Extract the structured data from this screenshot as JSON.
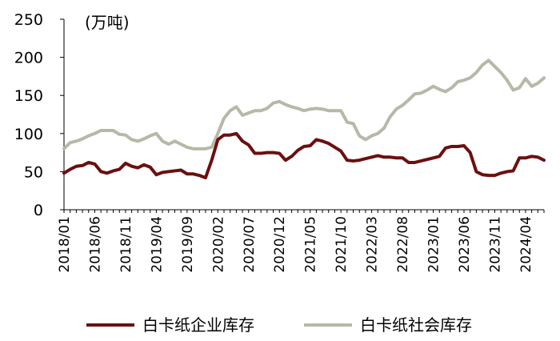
{
  "chart_data": {
    "type": "line",
    "title": "",
    "unit_label": "(万吨)",
    "xlabel": "",
    "ylabel": "",
    "ylim": [
      0,
      250
    ],
    "yticks": [
      0,
      50,
      100,
      150,
      200,
      250
    ],
    "x_start": "2018/01",
    "x_tick_labels": [
      "2018/01",
      "2018/06",
      "2018/11",
      "2019/04",
      "2019/09",
      "2020/02",
      "2020/07",
      "2020/12",
      "2021/05",
      "2021/10",
      "2022/03",
      "2022/08",
      "2023/01",
      "2023/06",
      "2023/11",
      "2024/04"
    ],
    "grid": false,
    "legend_position": "bottom",
    "series": [
      {
        "name": "白卡纸企业库存",
        "color": "#6b0f0f",
        "values": [
          48,
          53,
          57,
          58,
          62,
          60,
          50,
          48,
          51,
          53,
          61,
          57,
          55,
          59,
          56,
          46,
          49,
          50,
          51,
          52,
          47,
          47,
          45,
          42,
          65,
          92,
          98,
          98,
          100,
          90,
          85,
          74,
          74,
          75,
          75,
          74,
          65,
          70,
          78,
          83,
          84,
          92,
          90,
          87,
          82,
          77,
          65,
          64,
          65,
          67,
          69,
          71,
          69,
          69,
          68,
          68,
          62,
          62,
          64,
          66,
          68,
          70,
          81,
          83,
          83,
          84,
          75,
          50,
          46,
          45,
          45,
          48,
          50,
          51,
          68,
          68,
          70,
          69,
          65
        ]
      },
      {
        "name": "白卡纸社会库存",
        "color": "#b8b8a8",
        "values": [
          80,
          88,
          90,
          93,
          97,
          100,
          104,
          104,
          104,
          99,
          98,
          92,
          90,
          93,
          97,
          100,
          90,
          86,
          90,
          86,
          82,
          80,
          80,
          80,
          82,
          100,
          120,
          130,
          135,
          124,
          127,
          130,
          130,
          133,
          140,
          142,
          138,
          135,
          133,
          130,
          132,
          133,
          132,
          130,
          130,
          130,
          115,
          113,
          97,
          92,
          97,
          100,
          107,
          122,
          132,
          137,
          144,
          152,
          153,
          157,
          162,
          158,
          155,
          160,
          168,
          170,
          173,
          180,
          190,
          196,
          188,
          180,
          170,
          157,
          160,
          172,
          162,
          166,
          173
        ]
      }
    ]
  }
}
